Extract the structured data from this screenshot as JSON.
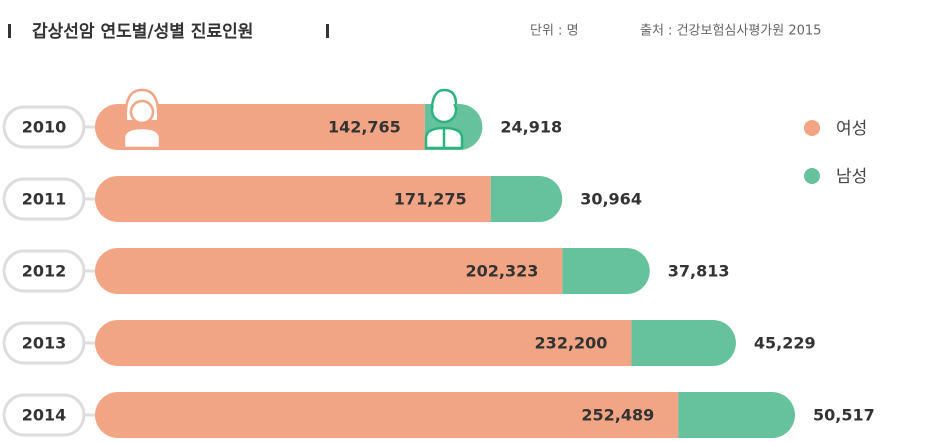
{
  "chart_data": {
    "type": "stacked-bar-horizontal",
    "title": "갑상선암 연도별/성별 진료인원",
    "unit": "단위 : 명",
    "source": "출처 : 건강보험심사평가원 2015",
    "categories": [
      "2010",
      "2011",
      "2012",
      "2013",
      "2014"
    ],
    "series": [
      {
        "name": "여성",
        "color": "#f2a584",
        "values": [
          142765,
          171275,
          202323,
          232200,
          252489
        ],
        "value_labels": [
          "142,765",
          "171,275",
          "202,323",
          "232,200",
          "252,489"
        ]
      },
      {
        "name": "남성",
        "color": "#66c29d",
        "values": [
          24918,
          30964,
          37813,
          45229,
          50517
        ],
        "value_labels": [
          "24,918",
          "30,964",
          "37,813",
          "45,229",
          "50,517"
        ]
      }
    ],
    "legend": "top-right"
  }
}
